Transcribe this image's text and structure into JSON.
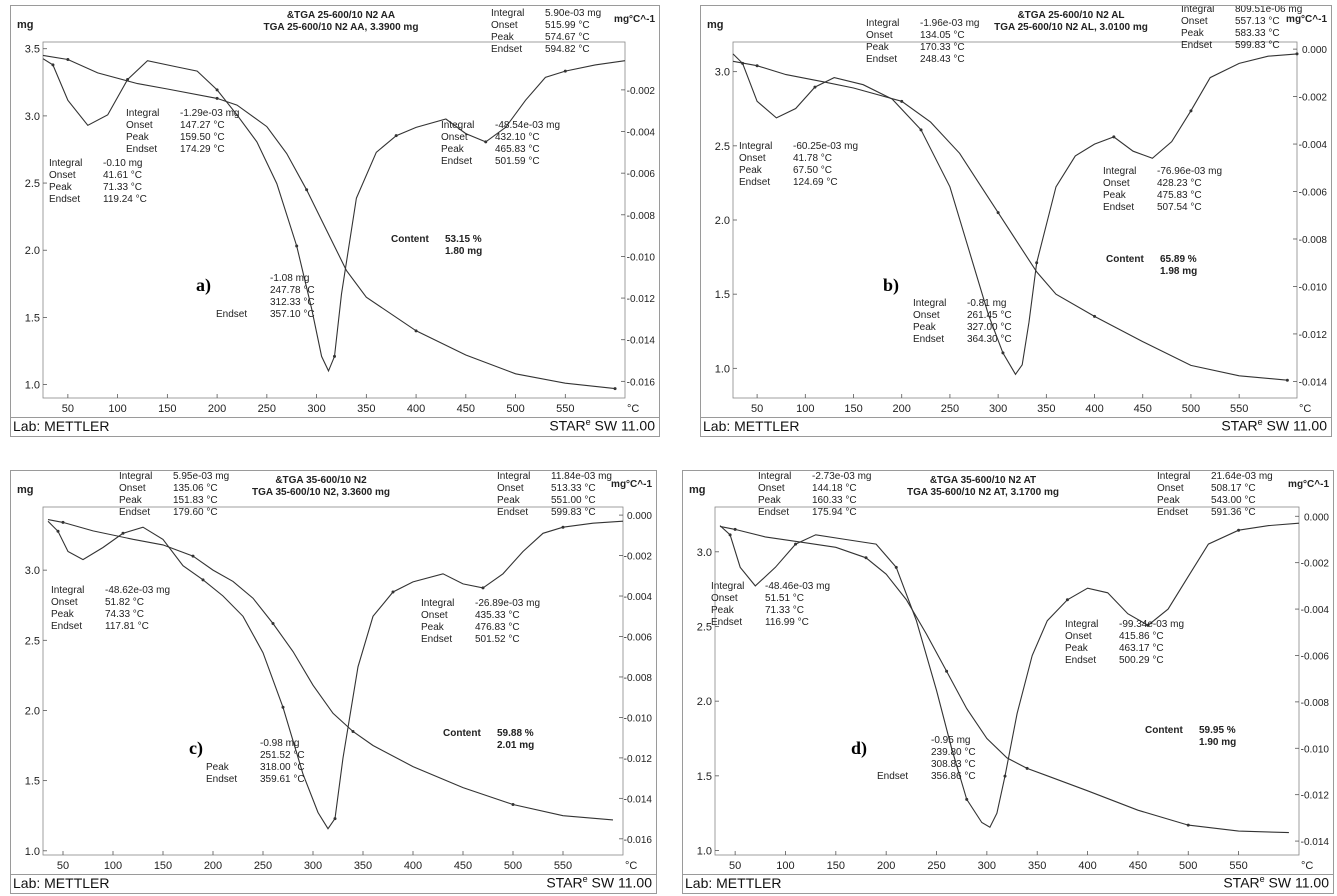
{
  "chart_data": [
    {
      "type": "line",
      "panel_label": "a)",
      "title": "&TGA 25-600/10 N2 AA",
      "subtitle": "TGA 25-600/10 N2 AA, 3.3900 mg",
      "xlabel": "°C",
      "ylabel_left": "mg",
      "ylabel_right": "mg°C^-1",
      "xlim": [
        25,
        610
      ],
      "x_ticks": [
        "50",
        "100",
        "150",
        "200",
        "250",
        "300",
        "350",
        "400",
        "450",
        "500",
        "550"
      ],
      "ylim_left": [
        0.9,
        3.55
      ],
      "y_ticks_left": [
        "1.0",
        "1.5",
        "2.0",
        "2.5",
        "3.0",
        "3.5"
      ],
      "ylim_right": [
        -0.0168,
        0.0003
      ],
      "y_ticks_right": [
        "-0.002",
        "-0.004",
        "-0.006",
        "-0.008",
        "-0.010",
        "-0.012",
        "-0.014",
        "-0.016"
      ],
      "series": [
        {
          "role": "tga",
          "x": [
            25,
            50,
            80,
            120,
            150,
            200,
            220,
            250,
            270,
            290,
            310,
            330,
            350,
            400,
            450,
            500,
            550,
            600
          ],
          "y": [
            3.45,
            3.42,
            3.32,
            3.24,
            3.2,
            3.13,
            3.08,
            2.92,
            2.72,
            2.45,
            2.15,
            1.85,
            1.65,
            1.4,
            1.22,
            1.08,
            1.01,
            0.97
          ]
        },
        {
          "role": "dtg",
          "x": [
            25,
            35,
            50,
            70,
            90,
            110,
            130,
            160,
            180,
            200,
            220,
            240,
            260,
            280,
            295,
            305,
            312,
            318,
            325,
            340,
            360,
            380,
            400,
            430,
            450,
            470,
            490,
            510,
            530,
            550,
            580,
            610
          ],
          "y": [
            -0.0005,
            -0.0008,
            -0.0025,
            -0.0037,
            -0.0032,
            -0.0015,
            -0.0006,
            -0.0009,
            -0.0011,
            -0.002,
            -0.0032,
            -0.0045,
            -0.0065,
            -0.0095,
            -0.0125,
            -0.0148,
            -0.0155,
            -0.0148,
            -0.0118,
            -0.0072,
            -0.005,
            -0.0042,
            -0.0038,
            -0.0034,
            -0.0041,
            -0.0045,
            -0.0038,
            -0.0025,
            -0.0014,
            -0.0011,
            -0.0008,
            -0.0006
          ]
        }
      ],
      "annotations": [
        {
          "lines": [
            "Integral",
            "Onset",
            "Peak",
            "Endset"
          ],
          "values": [
            "-0.10 mg",
            "41.61 °C",
            "71.33 °C",
            "119.24 °C"
          ]
        },
        {
          "lines": [
            "Integral",
            "Onset",
            "Peak",
            "Endset"
          ],
          "values": [
            "-1.29e-03 mg",
            "147.27 °C",
            "159.50 °C",
            "174.29 °C"
          ]
        },
        {
          "lines": [
            "",
            "",
            "",
            "Endset"
          ],
          "values": [
            "-1.08 mg",
            "247.78 °C",
            "312.33 °C",
            "357.10 °C"
          ]
        },
        {
          "lines": [
            "Integral",
            "Onset",
            "Peak",
            "Endset"
          ],
          "values": [
            "-48.54e-03 mg",
            "432.10 °C",
            "465.83 °C",
            "501.59 °C"
          ]
        },
        {
          "lines": [
            "Integral",
            "Onset",
            "Peak",
            "Endset"
          ],
          "values": [
            "5.90e-03 mg",
            "515.99 °C",
            "574.67 °C",
            "594.82 °C"
          ]
        }
      ],
      "content": {
        "label": "Content",
        "percent": "53.15 %",
        "mass": "1.80 mg"
      }
    },
    {
      "type": "line",
      "panel_label": "b)",
      "title": "&TGA 25-600/10 N2 AL",
      "subtitle": "TGA 25-600/10 N2 AL, 3.0100 mg",
      "xlabel": "°C",
      "ylabel_left": "mg",
      "ylabel_right": "mg°C^-1",
      "xlim": [
        25,
        610
      ],
      "x_ticks": [
        "50",
        "100",
        "150",
        "200",
        "250",
        "300",
        "350",
        "400",
        "450",
        "500",
        "550"
      ],
      "ylim_left": [
        0.8,
        3.2
      ],
      "y_ticks_left": [
        "1.0",
        "1.5",
        "2.0",
        "2.5",
        "3.0"
      ],
      "ylim_right": [
        -0.0147,
        0.0003
      ],
      "y_ticks_right": [
        "0.000",
        "-0.002",
        "-0.004",
        "-0.006",
        "-0.008",
        "-0.010",
        "-0.012",
        "-0.014"
      ],
      "series": [
        {
          "role": "tga",
          "x": [
            25,
            50,
            80,
            120,
            150,
            200,
            230,
            260,
            280,
            300,
            320,
            340,
            360,
            400,
            450,
            500,
            550,
            600
          ],
          "y": [
            3.07,
            3.04,
            2.98,
            2.93,
            2.89,
            2.8,
            2.66,
            2.45,
            2.25,
            2.05,
            1.85,
            1.65,
            1.5,
            1.35,
            1.18,
            1.02,
            0.95,
            0.92
          ]
        },
        {
          "role": "dtg",
          "x": [
            25,
            35,
            50,
            70,
            90,
            110,
            130,
            160,
            190,
            220,
            250,
            270,
            290,
            305,
            318,
            325,
            332,
            340,
            360,
            380,
            400,
            420,
            440,
            460,
            480,
            500,
            520,
            550,
            580,
            610
          ],
          "y": [
            -0.0002,
            -0.0006,
            -0.0022,
            -0.0029,
            -0.0025,
            -0.0016,
            -0.0012,
            -0.0015,
            -0.0021,
            -0.0034,
            -0.0058,
            -0.0085,
            -0.0112,
            -0.0128,
            -0.0137,
            -0.0133,
            -0.0115,
            -0.009,
            -0.0058,
            -0.0045,
            -0.004,
            -0.0037,
            -0.0043,
            -0.0046,
            -0.0039,
            -0.0026,
            -0.0012,
            -0.0006,
            -0.0003,
            -0.0002
          ]
        }
      ],
      "annotations": [
        {
          "lines": [
            "Integral",
            "Onset",
            "Peak",
            "Endset"
          ],
          "values": [
            "-60.25e-03 mg",
            "41.78 °C",
            "67.50 °C",
            "124.69 °C"
          ]
        },
        {
          "lines": [
            "Integral",
            "Onset",
            "Peak",
            "Endset"
          ],
          "values": [
            "-1.96e-03 mg",
            "134.05 °C",
            "170.33 °C",
            "248.43 °C"
          ]
        },
        {
          "lines": [
            "Integral",
            "Onset",
            "Peak",
            "Endset"
          ],
          "values": [
            "-0.81 mg",
            "261.45 °C",
            "327.00 °C",
            "364.30 °C"
          ]
        },
        {
          "lines": [
            "Integral",
            "Onset",
            "Peak",
            "Endset"
          ],
          "values": [
            "-76.96e-03 mg",
            "428.23 °C",
            "475.83 °C",
            "507.54 °C"
          ]
        },
        {
          "lines": [
            "Integral",
            "Onset",
            "Peak",
            "Endset"
          ],
          "values": [
            "809.51e-06 mg",
            "557.13 °C",
            "583.33 °C",
            "599.83 °C"
          ]
        }
      ],
      "content": {
        "label": "Content",
        "percent": "65.89 %",
        "mass": "1.98 mg"
      }
    },
    {
      "type": "line",
      "panel_label": "c)",
      "title": "&TGA 35-600/10 N2",
      "subtitle": "TGA 35-600/10 N2, 3.3600 mg",
      "xlabel": "°C",
      "ylabel_left": "mg",
      "ylabel_right": "mg°C^-1",
      "xlim": [
        30,
        610
      ],
      "x_ticks": [
        "50",
        "100",
        "150",
        "200",
        "250",
        "300",
        "350",
        "400",
        "450",
        "500",
        "550"
      ],
      "ylim_left": [
        0.97,
        3.45
      ],
      "y_ticks_left": [
        "1.0",
        "1.5",
        "2.0",
        "2.5",
        "3.0"
      ],
      "ylim_right": [
        -0.0168,
        0.0004
      ],
      "y_ticks_right": [
        "0.000",
        "-0.002",
        "-0.004",
        "-0.006",
        "-0.008",
        "-0.010",
        "-0.012",
        "-0.014",
        "-0.016"
      ],
      "series": [
        {
          "role": "tga",
          "x": [
            35,
            50,
            80,
            120,
            150,
            180,
            200,
            220,
            240,
            260,
            280,
            300,
            320,
            340,
            360,
            400,
            450,
            500,
            550,
            600
          ],
          "y": [
            3.36,
            3.34,
            3.28,
            3.22,
            3.18,
            3.1,
            3.0,
            2.92,
            2.8,
            2.62,
            2.42,
            2.18,
            1.98,
            1.85,
            1.75,
            1.6,
            1.45,
            1.33,
            1.25,
            1.22
          ]
        },
        {
          "role": "dtg",
          "x": [
            35,
            45,
            55,
            70,
            90,
            110,
            130,
            150,
            170,
            190,
            210,
            230,
            250,
            270,
            290,
            305,
            315,
            322,
            330,
            345,
            360,
            380,
            400,
            430,
            450,
            470,
            490,
            510,
            530,
            550,
            580,
            610
          ],
          "y": [
            -0.0003,
            -0.0008,
            -0.0018,
            -0.0022,
            -0.0016,
            -0.0009,
            -0.0006,
            -0.0012,
            -0.0025,
            -0.0032,
            -0.004,
            -0.005,
            -0.0068,
            -0.0095,
            -0.0128,
            -0.0147,
            -0.0155,
            -0.015,
            -0.012,
            -0.0075,
            -0.005,
            -0.0038,
            -0.0033,
            -0.0029,
            -0.0034,
            -0.0036,
            -0.0029,
            -0.0018,
            -0.0009,
            -0.0006,
            -0.0004,
            -0.0003
          ]
        }
      ],
      "annotations": [
        {
          "lines": [
            "Integral",
            "Onset",
            "Peak",
            "Endset"
          ],
          "values": [
            "-48.62e-03 mg",
            "51.82 °C",
            "74.33 °C",
            "117.81 °C"
          ]
        },
        {
          "lines": [
            "Integral",
            "Onset",
            "Peak",
            "Endset"
          ],
          "values": [
            "5.95e-03 mg",
            "135.06 °C",
            "151.83 °C",
            "179.60 °C"
          ]
        },
        {
          "lines": [
            "",
            "",
            "Peak",
            "Endset"
          ],
          "values": [
            "-0.98 mg",
            "251.52 °C",
            "318.00 °C",
            "359.61 °C"
          ]
        },
        {
          "lines": [
            "Integral",
            "Onset",
            "Peak",
            "Endset"
          ],
          "values": [
            "-26.89e-03 mg",
            "435.33 °C",
            "476.83 °C",
            "501.52 °C"
          ]
        },
        {
          "lines": [
            "Integral",
            "Onset",
            "Peak",
            "Endset"
          ],
          "values": [
            "11.84e-03 mg",
            "513.33 °C",
            "551.00 °C",
            "599.83 °C"
          ]
        }
      ],
      "content": {
        "label": "Content",
        "percent": "59.88 %",
        "mass": "2.01 mg"
      }
    },
    {
      "type": "line",
      "panel_label": "d)",
      "title": "&TGA 35-600/10 N2 AT",
      "subtitle": "TGA 35-600/10 N2 AT, 3.1700 mg",
      "xlabel": "°C",
      "ylabel_left": "mg",
      "ylabel_right": "mg°C^-1",
      "xlim": [
        30,
        610
      ],
      "x_ticks": [
        "50",
        "100",
        "150",
        "200",
        "250",
        "300",
        "350",
        "400",
        "450",
        "500",
        "550"
      ],
      "ylim_left": [
        0.97,
        3.3
      ],
      "y_ticks_left": [
        "1.0",
        "1.5",
        "2.0",
        "2.5",
        "3.0"
      ],
      "ylim_right": [
        -0.0146,
        0.0004
      ],
      "y_ticks_right": [
        "0.000",
        "-0.002",
        "-0.004",
        "-0.006",
        "-0.008",
        "-0.010",
        "-0.012",
        "-0.014"
      ],
      "series": [
        {
          "role": "tga",
          "x": [
            35,
            50,
            80,
            120,
            150,
            180,
            200,
            220,
            240,
            260,
            280,
            300,
            320,
            340,
            360,
            400,
            450,
            500,
            550,
            600
          ],
          "y": [
            3.17,
            3.15,
            3.1,
            3.06,
            3.03,
            2.96,
            2.85,
            2.68,
            2.45,
            2.2,
            1.95,
            1.75,
            1.62,
            1.55,
            1.5,
            1.4,
            1.27,
            1.17,
            1.13,
            1.12
          ]
        },
        {
          "role": "dtg",
          "x": [
            35,
            45,
            55,
            70,
            90,
            110,
            130,
            160,
            190,
            210,
            230,
            250,
            265,
            280,
            295,
            303,
            310,
            318,
            330,
            345,
            360,
            380,
            400,
            420,
            440,
            460,
            480,
            500,
            520,
            550,
            580,
            610
          ],
          "y": [
            -0.0004,
            -0.0008,
            -0.0022,
            -0.003,
            -0.0022,
            -0.0012,
            -0.0008,
            -0.001,
            -0.0012,
            -0.0022,
            -0.0045,
            -0.0075,
            -0.01,
            -0.0122,
            -0.0132,
            -0.0134,
            -0.0128,
            -0.0112,
            -0.0085,
            -0.006,
            -0.0045,
            -0.0036,
            -0.0031,
            -0.0033,
            -0.0042,
            -0.0047,
            -0.004,
            -0.0026,
            -0.0012,
            -0.0006,
            -0.0004,
            -0.0003
          ]
        }
      ],
      "annotations": [
        {
          "lines": [
            "Integral",
            "Onset",
            "Peak",
            "Endset"
          ],
          "values": [
            "-48.46e-03 mg",
            "51.51 °C",
            "71.33 °C",
            "116.99 °C"
          ]
        },
        {
          "lines": [
            "Integral",
            "Onset",
            "Peak",
            "Endset"
          ],
          "values": [
            "-2.73e-03 mg",
            "144.18 °C",
            "160.33 °C",
            "175.94 °C"
          ]
        },
        {
          "lines": [
            "",
            "",
            "",
            "Endset"
          ],
          "values": [
            "-0.95 mg",
            "239.80 °C",
            "308.83 °C",
            "356.86 °C"
          ]
        },
        {
          "lines": [
            "Integral",
            "Onset",
            "Peak",
            "Endset"
          ],
          "values": [
            "-99.34e-03 mg",
            "415.86 °C",
            "463.17 °C",
            "500.29 °C"
          ]
        },
        {
          "lines": [
            "Integral",
            "Onset",
            "Peak",
            "Endset"
          ],
          "values": [
            "21.64e-03 mg",
            "508.17 °C",
            "543.00 °C",
            "591.36 °C"
          ]
        }
      ],
      "content": {
        "label": "Content",
        "percent": "59.95 %",
        "mass": "1.90 mg"
      }
    }
  ],
  "footer": {
    "lab": "Lab: METTLER",
    "software_prefix": "STAR",
    "software_sup": "e",
    "software_suffix": " SW 11.00"
  }
}
